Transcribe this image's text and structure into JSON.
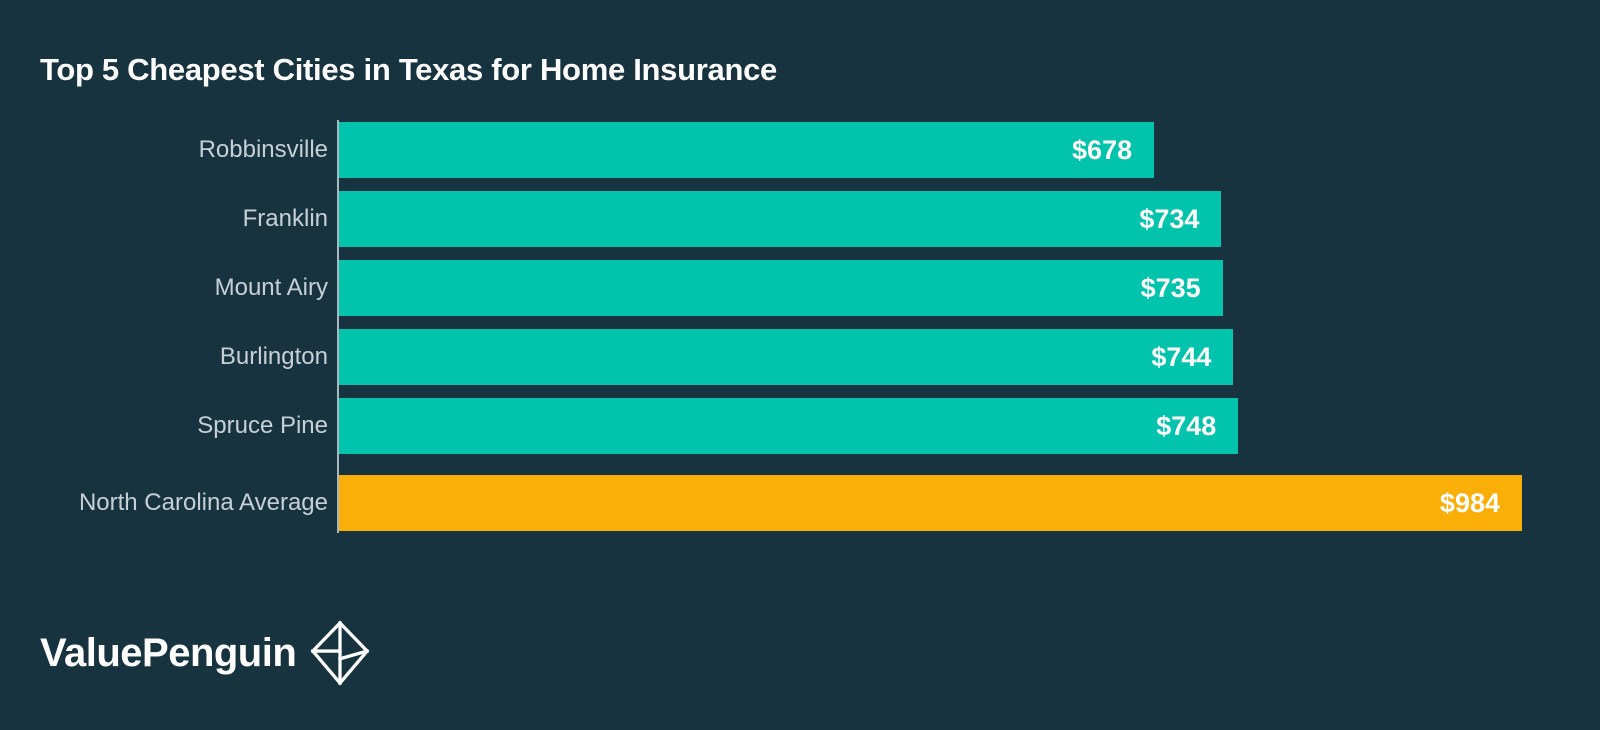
{
  "title": "Top 5 Cheapest Cities in Texas for Home Insurance",
  "colors": {
    "background": "#17333f",
    "bar_teal": "#02c3ab",
    "bar_orange": "#f9ae08",
    "title_text": "#ffffff",
    "label_text": "#c6d0d6",
    "value_text": "#ffffff",
    "axis_line": "#aab8c0"
  },
  "chart_data": {
    "type": "bar",
    "orientation": "horizontal",
    "title": "Top 5 Cheapest Cities in Texas for Home Insurance",
    "categories": [
      "Robbinsville",
      "Franklin",
      "Mount Airy",
      "Burlington",
      "Spruce Pine",
      "North Carolina Average"
    ],
    "values": [
      678,
      734,
      735,
      744,
      748,
      984
    ],
    "value_labels": [
      "$678",
      "$734",
      "$735",
      "$744",
      "$748",
      "$984"
    ],
    "xlim": [
      0,
      984
    ],
    "grid": false,
    "legend": false,
    "value_label_position": "inside-end",
    "bars": [
      {
        "label": "Robbinsville",
        "value": 678,
        "value_label": "$678",
        "color": "#02c3ab"
      },
      {
        "label": "Franklin",
        "value": 734,
        "value_label": "$734",
        "color": "#02c3ab"
      },
      {
        "label": "Mount Airy",
        "value": 735,
        "value_label": "$735",
        "color": "#02c3ab"
      },
      {
        "label": "Burlington",
        "value": 744,
        "value_label": "$744",
        "color": "#02c3ab"
      },
      {
        "label": "Spruce Pine",
        "value": 748,
        "value_label": "$748",
        "color": "#02c3ab"
      },
      {
        "label": "North Carolina Average",
        "value": 984,
        "value_label": "$984",
        "color": "#f9ae08"
      }
    ]
  },
  "logo": {
    "text": "ValuePenguin",
    "icon": "origami-penguin-diamond-icon"
  }
}
